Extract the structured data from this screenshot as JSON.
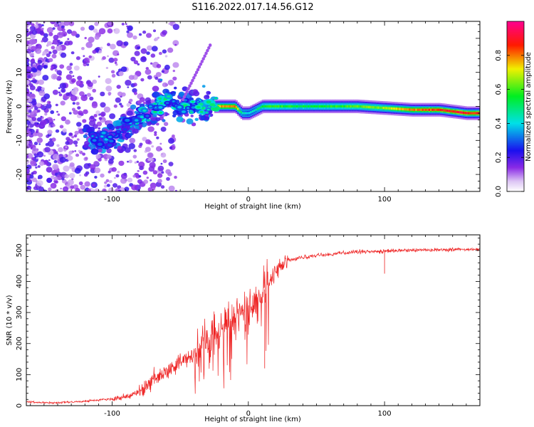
{
  "title": "S116.2022.017.14.56.G12",
  "colors": {
    "snr_line": "#ee2222",
    "axis": "#000000",
    "background": "#ffffff"
  },
  "chart_data": [
    {
      "type": "heatmap",
      "title": "S116.2022.017.14.56.G12",
      "xlabel": "Height of straight line (km)",
      "ylabel": "Frequency (Hz)",
      "xlim": [
        -163,
        170
      ],
      "ylim": [
        -25,
        25
      ],
      "xticks": [
        -100,
        0,
        100
      ],
      "xtick_labels": [
        "-100",
        "0",
        "100"
      ],
      "yticks": [
        -20,
        -10,
        0,
        10,
        20
      ],
      "ytick_labels": [
        "-20",
        "-10",
        "0",
        "10",
        "20"
      ],
      "colorbar": {
        "label": "Normalized spectral amplitude",
        "range": [
          0,
          1
        ],
        "ticks": [
          0.0,
          0.2,
          0.4,
          0.6,
          0.8
        ],
        "tick_labels": [
          "0.0",
          "0.2",
          "0.4",
          "0.6",
          "0.8"
        ],
        "colormap": "rainbow (white → violet → blue → cyan → green → yellow → red → magenta)"
      },
      "ridge": {
        "description": "Dominant spectral peak frequency vs. height",
        "x": [
          -110,
          -100,
          -90,
          -80,
          -70,
          -60,
          -50,
          -40,
          -30,
          -20,
          -10,
          -5,
          0,
          10,
          20,
          40,
          60,
          80,
          100,
          120,
          140,
          160,
          168
        ],
        "freq": [
          -10,
          -9,
          -6,
          -3,
          -1,
          2,
          0,
          0,
          0,
          0,
          0,
          -2,
          -2,
          0,
          0,
          0,
          0,
          0,
          -0.5,
          -1,
          -1,
          -2,
          -2
        ],
        "amplitude": [
          0.3,
          0.32,
          0.35,
          0.38,
          0.4,
          0.42,
          0.38,
          0.45,
          0.5,
          0.8,
          0.85,
          0.45,
          0.4,
          0.55,
          0.6,
          0.55,
          0.58,
          0.62,
          0.68,
          0.8,
          0.88,
          0.9,
          0.9
        ]
      }
    },
    {
      "type": "line",
      "xlabel": "Height of straight line (km)",
      "ylabel": "SNR (10 * v/v)",
      "xlim": [
        -163,
        170
      ],
      "ylim": [
        0,
        550
      ],
      "xticks": [
        -100,
        0,
        100
      ],
      "xtick_labels": [
        "-100",
        "0",
        "100"
      ],
      "yticks": [
        0,
        100,
        200,
        300,
        400,
        500
      ],
      "ytick_labels": [
        "0",
        "100",
        "200",
        "300",
        "400",
        "500"
      ],
      "series": [
        {
          "name": "SNR",
          "x": [
            -163,
            -150,
            -140,
            -130,
            -120,
            -110,
            -100,
            -90,
            -85,
            -80,
            -75,
            -70,
            -65,
            -60,
            -55,
            -50,
            -45,
            -40,
            -35,
            -30,
            -25,
            -20,
            -15,
            -10,
            -5,
            0,
            5,
            10,
            15,
            20,
            25,
            30,
            40,
            50,
            60,
            70,
            80,
            90,
            100,
            110,
            120,
            130,
            140,
            150,
            160,
            170
          ],
          "y": [
            12,
            10,
            9,
            12,
            14,
            18,
            22,
            28,
            35,
            45,
            60,
            80,
            95,
            110,
            120,
            140,
            150,
            165,
            185,
            205,
            225,
            245,
            270,
            285,
            295,
            305,
            330,
            360,
            395,
            430,
            455,
            468,
            478,
            483,
            487,
            492,
            495,
            496,
            498,
            499,
            500,
            501,
            502,
            502,
            503,
            505
          ]
        }
      ]
    }
  ]
}
